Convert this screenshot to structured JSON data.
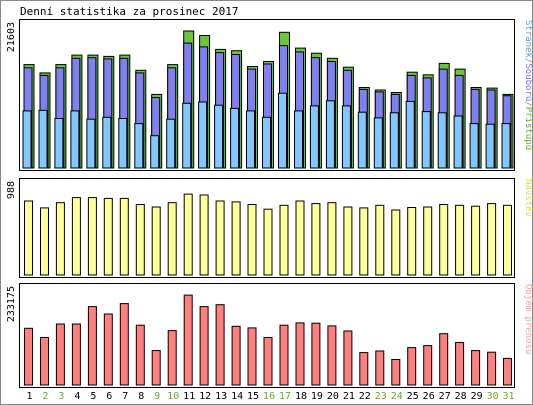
{
  "chart_data": {
    "type": "bar",
    "title": "Denní statistika za prosinec 2017",
    "x": [
      "1",
      "2",
      "3",
      "4",
      "5",
      "6",
      "7",
      "8",
      "9",
      "10",
      "11",
      "12",
      "13",
      "14",
      "15",
      "16",
      "17",
      "18",
      "19",
      "20",
      "21",
      "22",
      "23",
      "24",
      "25",
      "26",
      "27",
      "28",
      "29",
      "30",
      "31"
    ],
    "weekend_days": [
      "2",
      "3",
      "9",
      "10",
      "16",
      "17",
      "23",
      "24",
      "30",
      "31"
    ],
    "panels": [
      {
        "ymax": 21603,
        "ymax_label": "21603",
        "legend": [
          {
            "text": "Stránek",
            "color": "#5aa0c8"
          },
          {
            "text": "/",
            "color": "#888888"
          },
          {
            "text": "Souborů",
            "color": "#7777dd"
          },
          {
            "text": "/",
            "color": "#888888"
          },
          {
            "text": "Přístupů",
            "color": "#66aa22"
          }
        ],
        "series": [
          {
            "name": "Přístupů",
            "color": "#6cc43c",
            "values": [
              16300,
              15000,
              16300,
              17800,
              17800,
              17600,
              17800,
              15400,
              11600,
              16300,
              21600,
              20900,
              18700,
              18500,
              16000,
              16800,
              21400,
              18900,
              18100,
              17300,
              15900,
              12700,
              12300,
              11900,
              15100,
              14700,
              16500,
              15600,
              12700,
              12600,
              11600
            ]
          },
          {
            "name": "Souborů",
            "color": "#8080f0",
            "values": [
              15800,
              14600,
              15800,
              17300,
              17400,
              17200,
              17300,
              15000,
              11100,
              15800,
              19700,
              19100,
              18200,
              17900,
              15600,
              16400,
              19300,
              18300,
              17400,
              16800,
              15400,
              12400,
              12000,
              11600,
              14600,
              14200,
              15600,
              14600,
              12400,
              12300,
              11400
            ]
          },
          {
            "name": "Stránek",
            "color": "#80c8ff",
            "values": [
              9000,
              9100,
              7800,
              9000,
              7700,
              8000,
              7800,
              7000,
              5100,
              7700,
              10200,
              10400,
              9900,
              9400,
              9000,
              8000,
              11800,
              9000,
              9800,
              10600,
              9800,
              8800,
              7900,
              8700,
              10500,
              8900,
              8700,
              8200,
              7000,
              6900,
              7000
            ]
          }
        ]
      },
      {
        "ymax": 988,
        "ymax_label": "988",
        "legend": [
          {
            "text": "Návštěv",
            "color": "#dddd44"
          }
        ],
        "series": [
          {
            "name": "Návštěv",
            "color": "#ffff99",
            "values": [
              860,
              780,
              840,
              900,
              900,
              890,
              890,
              820,
              790,
              840,
              940,
              930,
              860,
              850,
              820,
              765,
              810,
              860,
              830,
              840,
              790,
              780,
              810,
              755,
              785,
              790,
              820,
              810,
              800,
              830,
              810
            ]
          }
        ]
      },
      {
        "ymax": 233175,
        "ymax_label": "233175",
        "legend": [
          {
            "text": "Objem přenosu",
            "color": "#ff9999"
          }
        ],
        "series": [
          {
            "name": "Objem přenosu",
            "color": "#ff8080",
            "values": [
              147000,
              123000,
              158000,
              158000,
              203000,
              184000,
              211000,
              155000,
              89000,
              141000,
              233000,
              203000,
              208000,
              152000,
              148000,
              123000,
              155000,
              161000,
              160000,
              153000,
              140000,
              84000,
              88000,
              66000,
              97000,
              102000,
              133000,
              110000,
              89000,
              85000,
              69000
            ]
          }
        ]
      }
    ]
  }
}
